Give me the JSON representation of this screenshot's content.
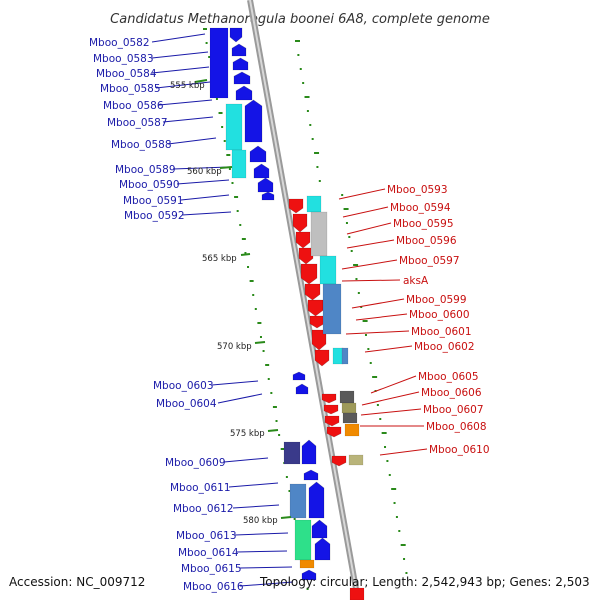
{
  "title": "Candidatus Methanoregula boonei 6A8, complete genome",
  "footer": {
    "accession": "Accession: NC_009712",
    "summary": "Topology: circular; Length: 2,542,943 bp; Genes: 2,503"
  },
  "colors": {
    "forward_cds": "#1414e6",
    "reverse_cds": "#ee1111",
    "label_forward": "#1a1aa8",
    "label_reverse": "#c81010",
    "backbone": "#8c8c8c",
    "gc_marks": "#2a8a1a"
  },
  "scale_labels": [
    "555 kbp",
    "560 kbp",
    "565 kbp",
    "570 kbp",
    "575 kbp",
    "580 kbp"
  ],
  "left_labels": [
    "Mboo_0582",
    "Mboo_0583",
    "Mboo_0584",
    "Mboo_0585",
    "Mboo_0586",
    "Mboo_0587",
    "Mboo_0588",
    "Mboo_0589",
    "Mboo_0590",
    "Mboo_0591",
    "Mboo_0592",
    "Mboo_0603",
    "Mboo_0604",
    "Mboo_0609",
    "Mboo_0611",
    "Mboo_0612",
    "Mboo_0613",
    "Mboo_0614",
    "Mboo_0615",
    "Mboo_0616"
  ],
  "right_labels": [
    "Mboo_0593",
    "Mboo_0594",
    "Mboo_0595",
    "Mboo_0596",
    "Mboo_0597",
    "aksA",
    "Mboo_0599",
    "Mboo_0600",
    "Mboo_0601",
    "Mboo_0602",
    "Mboo_0605",
    "Mboo_0606",
    "Mboo_0607",
    "Mboo_0608",
    "Mboo_0610"
  ]
}
